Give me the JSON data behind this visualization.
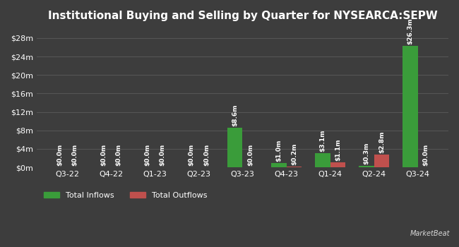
{
  "title": "Institutional Buying and Selling by Quarter for NYSEARCA:SEPW",
  "quarters": [
    "Q3-22",
    "Q4-22",
    "Q1-23",
    "Q2-23",
    "Q3-23",
    "Q4-23",
    "Q1-24",
    "Q2-24",
    "Q3-24"
  ],
  "inflows": [
    0.0,
    0.0,
    0.0,
    0.0,
    8.6,
    1.0,
    3.1,
    0.3,
    26.3
  ],
  "outflows": [
    0.0,
    0.0,
    0.0,
    0.0,
    0.0,
    0.2,
    1.1,
    2.8,
    0.0
  ],
  "inflow_labels": [
    "$0.0m",
    "$0.0m",
    "$0.0m",
    "$0.0m",
    "$8.6m",
    "$1.0m",
    "$3.1m",
    "$0.3m",
    "$26.3m"
  ],
  "outflow_labels": [
    "$0.0m",
    "$0.0m",
    "$0.0m",
    "$0.0m",
    "$0.0m",
    "$0.2m",
    "$1.1m",
    "$2.8m",
    "$0.0m"
  ],
  "inflow_color": "#3a9c3a",
  "outflow_color": "#c0504d",
  "background_color": "#3d3d3d",
  "grid_color": "#555555",
  "text_color": "#ffffff",
  "title_fontsize": 11,
  "label_fontsize": 6.5,
  "tick_fontsize": 8,
  "legend_fontsize": 8,
  "yticks": [
    0,
    4,
    8,
    12,
    16,
    20,
    24,
    28
  ],
  "ytick_labels": [
    "$0m",
    "$4m",
    "$8m",
    "$12m",
    "$16m",
    "$20m",
    "$24m",
    "$28m"
  ],
  "ylim": [
    0,
    30
  ],
  "bar_width": 0.35
}
